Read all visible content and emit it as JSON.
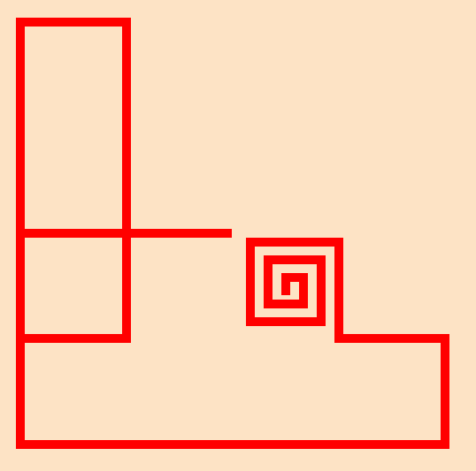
{
  "colors": {
    "background": "#FDE3C5",
    "stroke": "#FF0000"
  }
}
